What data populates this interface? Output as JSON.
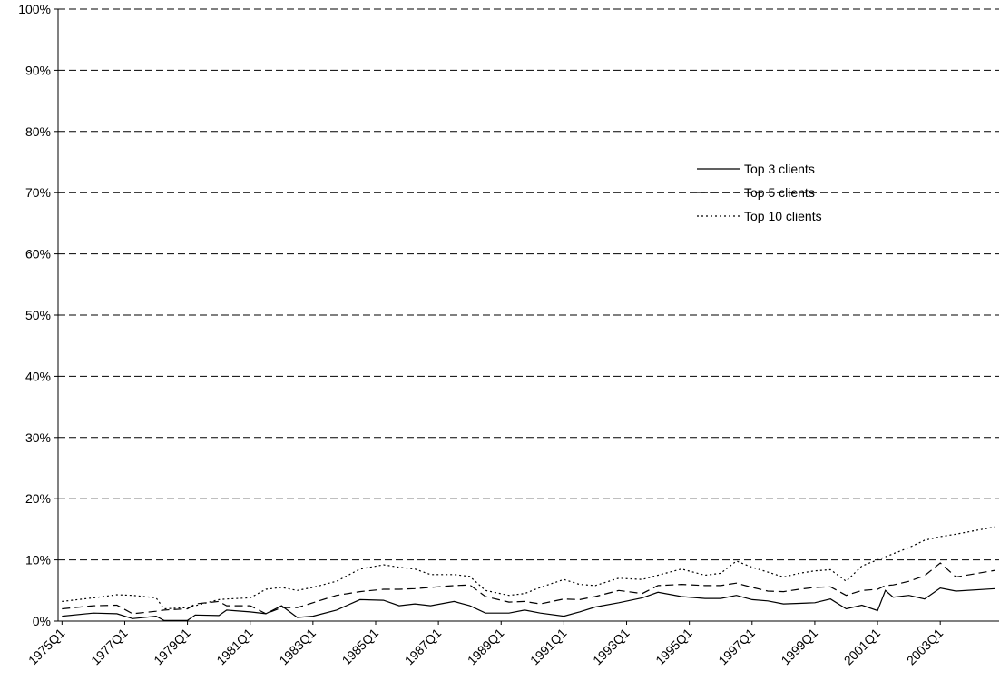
{
  "chart_data": {
    "type": "line",
    "title": "",
    "xlabel": "",
    "ylabel": "",
    "ylim": [
      0,
      100
    ],
    "y_unit": "%",
    "grid": "horizontal dashed",
    "legend_position": "right-middle",
    "y_ticks": [
      "0%",
      "10%",
      "20%",
      "30%",
      "40%",
      "50%",
      "60%",
      "70%",
      "80%",
      "90%",
      "100%"
    ],
    "x_tick_labels": [
      "1975Q1",
      "1977Q1",
      "1979Q1",
      "1981Q1",
      "1983Q1",
      "1985Q1",
      "1987Q1",
      "1989Q1",
      "1991Q1",
      "1993Q1",
      "1995Q1",
      "1997Q1",
      "1999Q1",
      "2001Q1",
      "2003Q1"
    ],
    "x_start": "1975Q1",
    "x_end": "2004Q4",
    "series": [
      {
        "name": "Top 3 clients",
        "dash": "solid",
        "color": "#000000",
        "points": [
          [
            "1975Q1",
            0.8
          ],
          [
            "1976Q1",
            1.3
          ],
          [
            "1976Q4",
            1.2
          ],
          [
            "1977Q2",
            0.4
          ],
          [
            "1978Q1",
            0.8
          ],
          [
            "1978Q2",
            0.1
          ],
          [
            "1979Q1",
            0.1
          ],
          [
            "1979Q2",
            1.0
          ],
          [
            "1980Q1",
            0.9
          ],
          [
            "1980Q2",
            1.8
          ],
          [
            "1981Q1",
            1.5
          ],
          [
            "1981Q3",
            1.2
          ],
          [
            "1982Q1",
            2.5
          ],
          [
            "1982Q3",
            0.6
          ],
          [
            "1983Q1",
            0.8
          ],
          [
            "1983Q4",
            1.8
          ],
          [
            "1984Q3",
            3.5
          ],
          [
            "1985Q2",
            3.4
          ],
          [
            "1985Q4",
            2.5
          ],
          [
            "1986Q2",
            2.8
          ],
          [
            "1986Q4",
            2.5
          ],
          [
            "1987Q3",
            3.2
          ],
          [
            "1988Q1",
            2.5
          ],
          [
            "1988Q3",
            1.3
          ],
          [
            "1989Q2",
            1.3
          ],
          [
            "1989Q4",
            1.8
          ],
          [
            "1990Q2",
            1.3
          ],
          [
            "1991Q1",
            0.8
          ],
          [
            "1991Q3",
            1.5
          ],
          [
            "1992Q1",
            2.3
          ],
          [
            "1992Q4",
            3.0
          ],
          [
            "1993Q3",
            3.8
          ],
          [
            "1994Q1",
            4.7
          ],
          [
            "1994Q4",
            4.0
          ],
          [
            "1995Q3",
            3.7
          ],
          [
            "1996Q1",
            3.7
          ],
          [
            "1996Q3",
            4.2
          ],
          [
            "1997Q1",
            3.5
          ],
          [
            "1997Q3",
            3.3
          ],
          [
            "1998Q1",
            2.8
          ],
          [
            "1998Q3",
            2.9
          ],
          [
            "1999Q1",
            3.0
          ],
          [
            "1999Q3",
            3.6
          ],
          [
            "2000Q1",
            2.0
          ],
          [
            "2000Q3",
            2.6
          ],
          [
            "2001Q1",
            1.7
          ],
          [
            "2001Q2",
            5.0
          ],
          [
            "2001Q3",
            3.9
          ],
          [
            "2002Q1",
            4.2
          ],
          [
            "2002Q3",
            3.6
          ],
          [
            "2003Q1",
            5.4
          ],
          [
            "2003Q3",
            4.9
          ],
          [
            "2004Q4",
            5.3
          ]
        ]
      },
      {
        "name": "Top 5 clients",
        "dash": "dashed",
        "color": "#000000",
        "points": [
          [
            "1975Q1",
            2.0
          ],
          [
            "1976Q1",
            2.5
          ],
          [
            "1976Q4",
            2.6
          ],
          [
            "1977Q2",
            1.2
          ],
          [
            "1978Q1",
            1.6
          ],
          [
            "1978Q2",
            1.8
          ],
          [
            "1979Q1",
            2.0
          ],
          [
            "1979Q2",
            2.8
          ],
          [
            "1980Q1",
            3.2
          ],
          [
            "1980Q2",
            2.5
          ],
          [
            "1981Q1",
            2.5
          ],
          [
            "1981Q3",
            1.2
          ],
          [
            "1982Q1",
            2.2
          ],
          [
            "1982Q3",
            2.2
          ],
          [
            "1983Q1",
            3.0
          ],
          [
            "1983Q4",
            4.2
          ],
          [
            "1984Q3",
            4.8
          ],
          [
            "1985Q2",
            5.2
          ],
          [
            "1985Q4",
            5.2
          ],
          [
            "1986Q2",
            5.3
          ],
          [
            "1986Q4",
            5.5
          ],
          [
            "1987Q3",
            5.8
          ],
          [
            "1988Q1",
            5.9
          ],
          [
            "1988Q3",
            4.0
          ],
          [
            "1989Q2",
            3.1
          ],
          [
            "1989Q4",
            3.2
          ],
          [
            "1990Q2",
            2.8
          ],
          [
            "1991Q1",
            3.6
          ],
          [
            "1991Q3",
            3.5
          ],
          [
            "1992Q1",
            4.0
          ],
          [
            "1992Q4",
            5.0
          ],
          [
            "1993Q3",
            4.5
          ],
          [
            "1994Q1",
            5.8
          ],
          [
            "1994Q4",
            6.0
          ],
          [
            "1995Q3",
            5.8
          ],
          [
            "1996Q1",
            5.8
          ],
          [
            "1996Q3",
            6.2
          ],
          [
            "1997Q1",
            5.5
          ],
          [
            "1997Q3",
            4.9
          ],
          [
            "1998Q1",
            4.8
          ],
          [
            "1998Q3",
            5.2
          ],
          [
            "1999Q1",
            5.5
          ],
          [
            "1999Q3",
            5.6
          ],
          [
            "2000Q1",
            4.2
          ],
          [
            "2000Q3",
            5.0
          ],
          [
            "2001Q1",
            5.2
          ],
          [
            "2001Q2",
            5.8
          ],
          [
            "2001Q3",
            5.9
          ],
          [
            "2002Q1",
            6.5
          ],
          [
            "2002Q3",
            7.4
          ],
          [
            "2003Q1",
            9.5
          ],
          [
            "2003Q3",
            7.2
          ],
          [
            "2004Q4",
            8.3
          ]
        ]
      },
      {
        "name": "Top 10 clients",
        "dash": "dotted",
        "color": "#000000",
        "points": [
          [
            "1975Q1",
            3.2
          ],
          [
            "1976Q1",
            3.8
          ],
          [
            "1976Q4",
            4.3
          ],
          [
            "1977Q2",
            4.2
          ],
          [
            "1978Q1",
            3.8
          ],
          [
            "1978Q2",
            2.0
          ],
          [
            "1979Q1",
            2.2
          ],
          [
            "1979Q2",
            2.5
          ],
          [
            "1980Q1",
            3.5
          ],
          [
            "1980Q2",
            3.6
          ],
          [
            "1981Q1",
            3.8
          ],
          [
            "1981Q3",
            5.2
          ],
          [
            "1982Q1",
            5.5
          ],
          [
            "1982Q3",
            5.0
          ],
          [
            "1983Q1",
            5.5
          ],
          [
            "1983Q4",
            6.5
          ],
          [
            "1984Q3",
            8.5
          ],
          [
            "1985Q2",
            9.2
          ],
          [
            "1985Q4",
            8.8
          ],
          [
            "1986Q2",
            8.5
          ],
          [
            "1986Q4",
            7.6
          ],
          [
            "1987Q3",
            7.6
          ],
          [
            "1988Q1",
            7.3
          ],
          [
            "1988Q3",
            5.0
          ],
          [
            "1989Q2",
            4.2
          ],
          [
            "1989Q4",
            4.5
          ],
          [
            "1990Q2",
            5.5
          ],
          [
            "1991Q1",
            6.8
          ],
          [
            "1991Q3",
            6.0
          ],
          [
            "1992Q1",
            5.8
          ],
          [
            "1992Q4",
            7.0
          ],
          [
            "1993Q3",
            6.8
          ],
          [
            "1994Q1",
            7.5
          ],
          [
            "1994Q4",
            8.5
          ],
          [
            "1995Q3",
            7.5
          ],
          [
            "1996Q1",
            7.8
          ],
          [
            "1996Q3",
            9.8
          ],
          [
            "1997Q1",
            8.8
          ],
          [
            "1997Q3",
            8.0
          ],
          [
            "1998Q1",
            7.2
          ],
          [
            "1998Q3",
            7.8
          ],
          [
            "1999Q1",
            8.2
          ],
          [
            "1999Q3",
            8.4
          ],
          [
            "2000Q1",
            6.5
          ],
          [
            "2000Q3",
            9.0
          ],
          [
            "2001Q1",
            10.0
          ],
          [
            "2001Q2",
            10.5
          ],
          [
            "2001Q3",
            11.0
          ],
          [
            "2002Q1",
            12.0
          ],
          [
            "2002Q3",
            13.2
          ],
          [
            "2003Q1",
            13.8
          ],
          [
            "2003Q3",
            14.2
          ],
          [
            "2004Q4",
            15.4
          ]
        ]
      }
    ]
  }
}
